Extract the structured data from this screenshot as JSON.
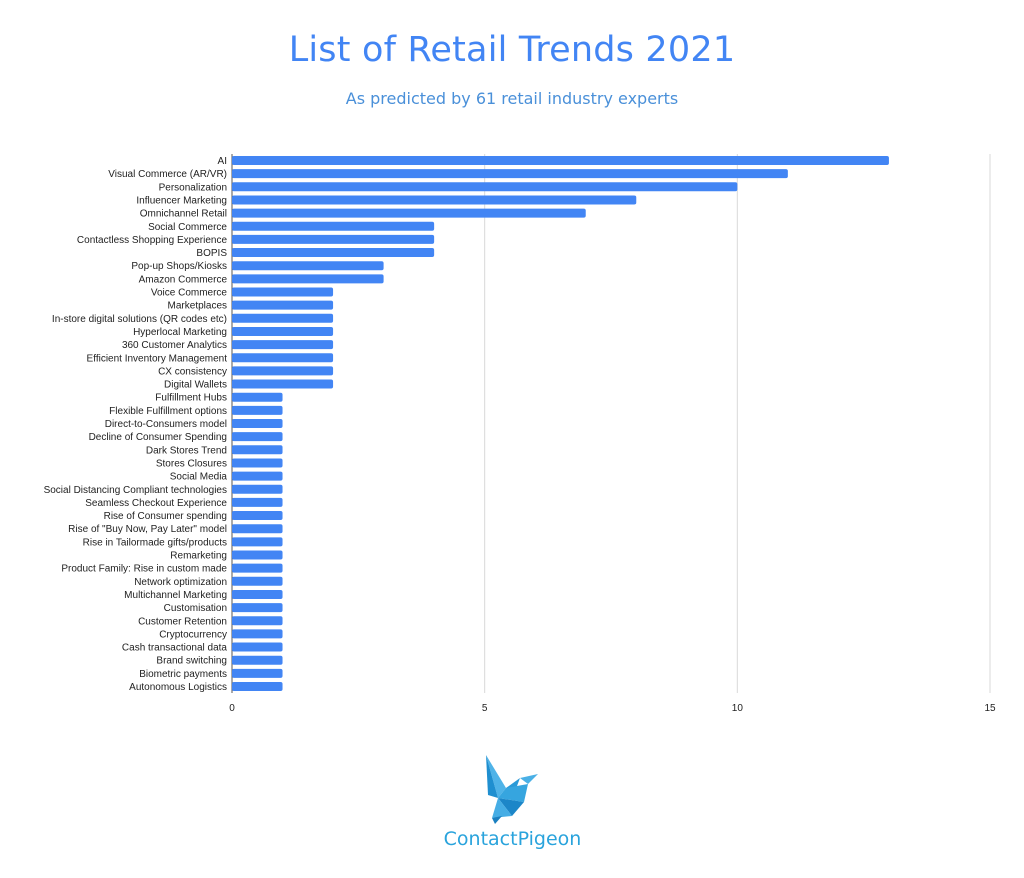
{
  "header": {
    "title": "List of Retail Trends 2021",
    "subtitle": "As predicted by 61 retail industry experts"
  },
  "colors": {
    "bar": "#4285f4",
    "title": "#4285f4",
    "logo": "#29a3dc"
  },
  "logo": {
    "text": "ContactPigeon",
    "icon": "pigeon-icon"
  },
  "chart_data": {
    "type": "bar",
    "orientation": "horizontal",
    "title": "List of Retail Trends 2021",
    "subtitle": "As predicted by 61 retail industry experts",
    "xlabel": "",
    "ylabel": "",
    "xlim": [
      0,
      15
    ],
    "xticks": [
      0,
      5,
      10,
      15
    ],
    "grid": true,
    "categories": [
      "AI",
      "Visual Commerce (AR/VR)",
      "Personalization",
      "Influencer Marketing",
      "Omnichannel Retail",
      "Social Commerce",
      "Contactless Shopping Experience",
      "BOPIS",
      "Pop-up Shops/Kiosks",
      "Amazon Commerce",
      "Voice Commerce",
      "Marketplaces",
      "In-store digital solutions (QR codes etc)",
      "Hyperlocal Marketing",
      "360 Customer Analytics",
      "Efficient Inventory Management",
      "CX consistency",
      "Digital Wallets",
      "Fulfillment Hubs",
      "Flexible Fulfillment options",
      "Direct-to-Consumers model",
      "Decline of Consumer Spending",
      "Dark Stores Trend",
      "Stores Closures",
      "Social Media",
      "Social Distancing Compliant technologies",
      "Seamless Checkout Experience",
      "Rise of Consumer spending",
      "Rise of \"Buy Now, Pay Later\" model",
      "Rise in Tailormade gifts/products",
      "Remarketing",
      "Product Family: Rise in custom made",
      "Network optimization",
      "Multichannel Marketing",
      "Customisation",
      "Customer Retention",
      "Cryptocurrency",
      "Cash transactional data",
      "Brand switching",
      "Biometric payments",
      "Autonomous Logistics"
    ],
    "values": [
      13,
      11,
      10,
      8,
      7,
      4,
      4,
      4,
      3,
      3,
      2,
      2,
      2,
      2,
      2,
      2,
      2,
      2,
      1,
      1,
      1,
      1,
      1,
      1,
      1,
      1,
      1,
      1,
      1,
      1,
      1,
      1,
      1,
      1,
      1,
      1,
      1,
      1,
      1,
      1,
      1
    ]
  }
}
